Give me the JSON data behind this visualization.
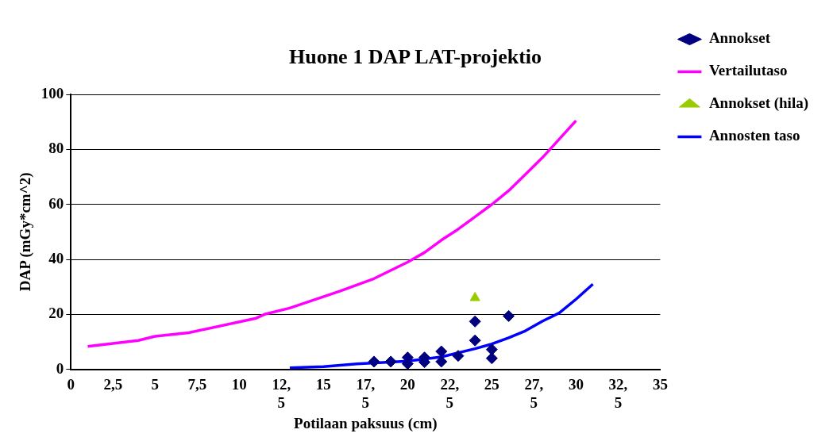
{
  "chart_data": {
    "type": "scatter",
    "title": "Huone 1 DAP LAT-projektio",
    "xlabel": "Potilaan paksuus (cm)",
    "ylabel": "DAP (mGy*cm^2)",
    "xlim": [
      0,
      35
    ],
    "xticks": [
      0,
      {
        "value": 2.5,
        "label": "2,5"
      },
      5,
      {
        "value": 7.5,
        "label": "7,5"
      },
      10,
      {
        "value": 12.5,
        "label": "12,5"
      },
      15,
      {
        "value": 17.5,
        "label": "17,5"
      },
      20,
      {
        "value": 22.5,
        "label": "22,5"
      },
      25,
      {
        "value": 27.5,
        "label": "27,5"
      },
      30,
      {
        "value": 32.5,
        "label": "32,5"
      },
      35
    ],
    "ylim": [
      0,
      100
    ],
    "yticks": [
      0,
      20,
      40,
      60,
      80,
      100
    ],
    "grid": "y",
    "legend": "right",
    "series": [
      {
        "name": "Annokset",
        "marker": "diamond",
        "color": "#000080",
        "x": [
          18,
          19,
          20,
          20,
          21,
          21,
          22,
          22,
          23,
          24,
          24,
          25,
          25,
          26
        ],
        "values": [
          2.8,
          2.8,
          4.3,
          2,
          4.3,
          2.6,
          6.5,
          2.8,
          4.9,
          10.5,
          17.4,
          7.2,
          4,
          19.4
        ]
      },
      {
        "name": "Vertailutaso",
        "type": "line",
        "marker": "none",
        "color": "#ff00ff",
        "x": [
          1,
          4,
          5,
          7,
          11,
          11.5,
          13,
          16,
          18,
          20,
          21,
          22,
          23,
          24,
          25,
          26,
          27,
          28,
          30
        ],
        "values": [
          8.3,
          10.5,
          12,
          13.3,
          18.6,
          20,
          22.3,
          28.5,
          33,
          39,
          42.5,
          47,
          51,
          55.5,
          60,
          65,
          71,
          77,
          90.5
        ]
      },
      {
        "name": "Annokset (hila)",
        "marker": "triangle",
        "color": "#99cc00",
        "x": [
          24
        ],
        "values": [
          26
        ]
      },
      {
        "name": "Annosten taso",
        "type": "line",
        "marker": "none",
        "color": "#0000ff",
        "x": [
          13,
          15,
          17,
          20,
          22,
          24,
          25,
          26,
          27,
          28,
          29,
          30,
          31
        ],
        "values": [
          0.5,
          1,
          2,
          3,
          4.5,
          7.5,
          9.2,
          11.5,
          14,
          17.5,
          20.5,
          25.5,
          31
        ]
      }
    ]
  }
}
